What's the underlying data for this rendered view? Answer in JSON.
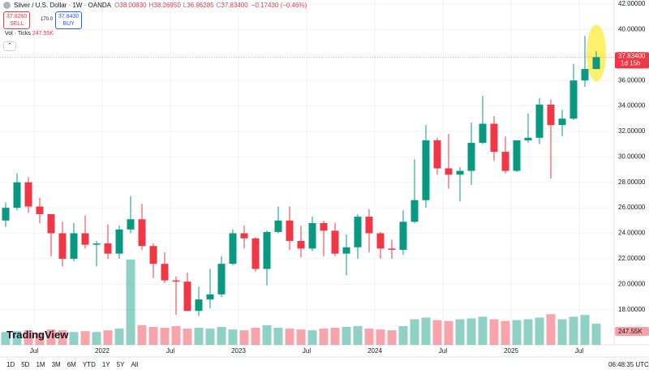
{
  "ui": {
    "symbol": "Silver / U.S. Dollar · 1W · OANDA",
    "ohlc": [
      {
        "label": "O",
        "value": "38.00830"
      },
      {
        "label": "H",
        "value": "38.26950"
      },
      {
        "label": "L",
        "value": "36.96285"
      },
      {
        "label": "C",
        "value": "37.83400"
      }
    ],
    "change": "−0.17430 (−0.46%)",
    "sell": {
      "price": "37.8260",
      "label": "SELL"
    },
    "spread": "170.0",
    "buy": {
      "price": "37.8430",
      "label": "BUY"
    },
    "volume_title": "Vol · Ticks",
    "volume_value": "247.55K",
    "countdown": "1d 15h",
    "logo": "TradingView",
    "ranges": [
      "1D",
      "5D",
      "1M",
      "3M",
      "6M",
      "YTD",
      "1Y",
      "5Y",
      "All"
    ],
    "clock": "06:48:35 UTC"
  },
  "chart_data": {
    "type": "candlestick",
    "x": [
      "2021-04",
      "2021-05",
      "2021-06",
      "2021-07",
      "2021-08",
      "2021-09",
      "2021-10",
      "2021-11",
      "2021-12",
      "2022-01",
      "2022-02",
      "2022-03",
      "2022-04",
      "2022-05",
      "2022-06",
      "2022-07",
      "2022-08",
      "2022-09",
      "2022-10",
      "2022-11",
      "2022-12",
      "2023-01",
      "2023-02",
      "2023-03",
      "2023-04",
      "2023-05",
      "2023-06",
      "2023-07",
      "2023-08",
      "2023-09",
      "2023-10",
      "2023-11",
      "2023-12",
      "2024-01",
      "2024-02",
      "2024-03",
      "2024-04",
      "2024-05",
      "2024-06",
      "2024-07",
      "2024-08",
      "2024-09",
      "2024-10",
      "2024-11",
      "2024-12",
      "2025-01",
      "2025-02",
      "2025-03",
      "2025-04",
      "2025-05",
      "2025-06",
      "2025-07",
      "2025-08"
    ],
    "open": [
      25.0,
      26.0,
      28.0,
      26.1,
      25.5,
      24.0,
      22.0,
      24.0,
      23.1,
      23.2,
      22.4,
      24.3,
      25.1,
      23.0,
      21.6,
      20.3,
      20.2,
      17.9,
      18.8,
      19.2,
      21.6,
      24.0,
      23.6,
      21.2,
      24.1,
      25.0,
      23.4,
      22.8,
      24.8,
      24.2,
      22.4,
      22.9,
      25.3,
      24.0,
      22.8,
      22.7,
      24.9,
      26.6,
      31.3,
      29.1,
      28.6,
      28.9,
      31.1,
      32.6,
      30.4,
      28.9,
      31.3,
      31.5,
      34.1,
      32.5,
      33.0,
      36.0,
      36.9
    ],
    "high": [
      26.4,
      28.7,
      28.4,
      26.8,
      25.5,
      24.9,
      24.8,
      25.4,
      23.4,
      24.7,
      24.6,
      26.9,
      26.3,
      23.2,
      22.5,
      20.6,
      20.9,
      19.8,
      21.2,
      22.2,
      24.3,
      24.6,
      23.7,
      24.2,
      26.1,
      26.1,
      24.6,
      25.3,
      25.0,
      24.8,
      23.9,
      25.5,
      25.9,
      24.1,
      23.5,
      25.8,
      29.8,
      32.5,
      31.5,
      31.8,
      29.2,
      32.7,
      34.8,
      33.2,
      31.6,
      31.3,
      33.4,
      34.6,
      34.5,
      33.7,
      37.3,
      39.5,
      38.3
    ],
    "low": [
      24.5,
      25.8,
      25.6,
      24.8,
      22.2,
      21.4,
      21.8,
      22.8,
      21.4,
      22.0,
      22.0,
      24.0,
      22.7,
      20.5,
      20.1,
      17.6,
      17.9,
      17.5,
      18.1,
      19.0,
      21.5,
      22.8,
      21.0,
      19.9,
      24.0,
      22.7,
      22.1,
      22.6,
      22.2,
      22.2,
      20.7,
      22.0,
      22.5,
      22.0,
      22.0,
      22.3,
      24.8,
      26.0,
      28.6,
      27.5,
      26.5,
      27.8,
      31.0,
      29.7,
      28.7,
      28.8,
      31.1,
      31.0,
      28.3,
      31.6,
      32.9,
      35.5,
      36.9
    ],
    "close": [
      26.0,
      28.0,
      26.1,
      25.5,
      24.0,
      22.0,
      24.0,
      23.1,
      23.2,
      22.4,
      24.3,
      25.1,
      23.0,
      21.6,
      20.3,
      20.2,
      17.9,
      18.8,
      19.2,
      21.6,
      24.0,
      23.6,
      21.2,
      24.1,
      25.0,
      23.4,
      22.8,
      24.8,
      24.2,
      22.4,
      22.9,
      25.3,
      24.0,
      22.8,
      22.7,
      24.9,
      26.6,
      31.3,
      29.1,
      28.6,
      28.9,
      31.1,
      32.6,
      30.4,
      28.9,
      31.3,
      31.5,
      34.1,
      32.5,
      33.0,
      36.0,
      36.9,
      37.834
    ],
    "volume": [
      150,
      160,
      170,
      140,
      180,
      170,
      150,
      160,
      150,
      170,
      190,
      1000,
      230,
      210,
      200,
      220,
      190,
      200,
      190,
      210,
      180,
      170,
      200,
      230,
      200,
      190,
      180,
      170,
      190,
      200,
      210,
      220,
      190,
      180,
      170,
      220,
      300,
      320,
      290,
      280,
      300,
      310,
      330,
      300,
      280,
      290,
      300,
      320,
      360,
      300,
      330,
      350,
      247.55
    ],
    "up_color": "#089981",
    "down_color": "#f23645",
    "ylim": [
      15.24,
      42.32
    ],
    "yticks": [
      {
        "value": 18,
        "label": "18.00000"
      },
      {
        "value": 20,
        "label": "20.00000"
      },
      {
        "value": 22,
        "label": "22.00000"
      },
      {
        "value": 24,
        "label": "24.00000"
      },
      {
        "value": 26,
        "label": "26.00000"
      },
      {
        "value": 28,
        "label": "28.00000"
      },
      {
        "value": 30,
        "label": "30.00000"
      },
      {
        "value": 32,
        "label": "32.00000"
      },
      {
        "value": 34,
        "label": "34.00000"
      },
      {
        "value": 36,
        "label": "36.00000"
      },
      {
        "value": 38,
        "label": "38.00000"
      },
      {
        "value": 40,
        "label": "40.00000"
      },
      {
        "value": 42,
        "label": "42.00000"
      }
    ],
    "xticks": [
      {
        "value": "2021-07",
        "label": "Jul"
      },
      {
        "value": "2022-01",
        "label": "2022"
      },
      {
        "value": "2022-07",
        "label": "Jul"
      },
      {
        "value": "2023-01",
        "label": "2023"
      },
      {
        "value": "2023-07",
        "label": "Jul"
      },
      {
        "value": "2024-01",
        "label": "2024"
      },
      {
        "value": "2024-07",
        "label": "Jul"
      },
      {
        "value": "2025-01",
        "label": "2025"
      },
      {
        "value": "2025-07",
        "label": "Jul"
      }
    ],
    "last_price": {
      "value": 37.834,
      "label": "37.83400"
    },
    "grid": true
  }
}
